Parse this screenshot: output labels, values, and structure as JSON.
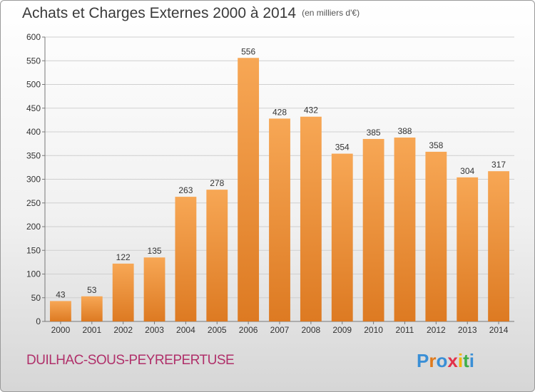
{
  "title": "Achats et Charges Externes 2000 à 2014",
  "subtitle": "(en milliers d'€)",
  "commune": "DUILHAC-SOUS-PEYREPERTUSE",
  "logo": {
    "letters": [
      "P",
      "r",
      "o",
      "x",
      "i",
      "t",
      "i"
    ],
    "colors": [
      "#3a8fd6",
      "#e07a1c",
      "#3a8fd6",
      "#e2324a",
      "#f2b500",
      "#3fae49",
      "#3a8fd6"
    ]
  },
  "colors": {
    "bar_top": "#f7a755",
    "bar_bottom": "#dd7a22",
    "grid": "#cfcfcf",
    "text": "#333333"
  },
  "chart_data": {
    "type": "bar",
    "categories": [
      "2000",
      "2001",
      "2002",
      "2003",
      "2004",
      "2005",
      "2006",
      "2007",
      "2008",
      "2009",
      "2010",
      "2011",
      "2012",
      "2013",
      "2014"
    ],
    "values": [
      43,
      53,
      122,
      135,
      263,
      278,
      556,
      428,
      432,
      354,
      385,
      388,
      358,
      304,
      317
    ],
    "title": "Achats et Charges Externes 2000 à 2014",
    "subtitle": "(en milliers d'€)",
    "xlabel": "",
    "ylabel": "",
    "ylim": [
      0,
      600
    ],
    "yticks": [
      0,
      50,
      100,
      150,
      200,
      250,
      300,
      350,
      400,
      450,
      500,
      550,
      600
    ],
    "grid": true,
    "data_labels": true
  }
}
